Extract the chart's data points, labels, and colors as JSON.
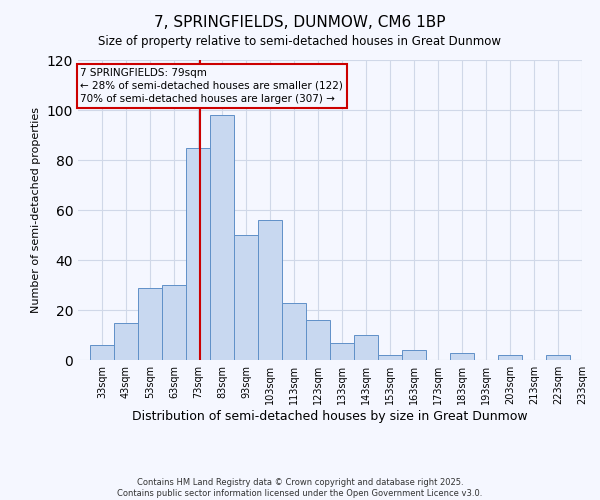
{
  "title": "7, SPRINGFIELDS, DUNMOW, CM6 1BP",
  "subtitle": "Size of property relative to semi-detached houses in Great Dunmow",
  "xlabel": "Distribution of semi-detached houses by size in Great Dunmow",
  "ylabel": "Number of semi-detached properties",
  "bins": [
    33,
    43,
    53,
    63,
    73,
    83,
    93,
    103,
    113,
    123,
    133,
    143,
    153,
    163,
    173,
    183,
    193,
    203,
    213,
    223,
    233
  ],
  "counts": [
    6,
    15,
    29,
    30,
    85,
    98,
    50,
    56,
    23,
    16,
    7,
    10,
    2,
    4,
    0,
    3,
    0,
    2,
    0,
    2
  ],
  "bar_color": "#c8d8f0",
  "bar_edge_color": "#6090c8",
  "vline_color": "#cc0000",
  "vline_x": 79,
  "annotation_line1": "7 SPRINGFIELDS: 79sqm",
  "annotation_line2": "← 28% of semi-detached houses are smaller (122)",
  "annotation_line3": "70% of semi-detached houses are larger (307) →",
  "annotation_box_edge_color": "#cc0000",
  "ylim": [
    0,
    120
  ],
  "yticks": [
    0,
    20,
    40,
    60,
    80,
    100,
    120
  ],
  "tick_labels": [
    "33sqm",
    "43sqm",
    "53sqm",
    "63sqm",
    "73sqm",
    "83sqm",
    "93sqm",
    "103sqm",
    "113sqm",
    "123sqm",
    "133sqm",
    "143sqm",
    "153sqm",
    "163sqm",
    "173sqm",
    "183sqm",
    "193sqm",
    "203sqm",
    "213sqm",
    "223sqm",
    "233sqm"
  ],
  "bg_color": "#f5f7ff",
  "grid_color": "#d0d8e8",
  "footer1": "Contains HM Land Registry data © Crown copyright and database right 2025.",
  "footer2": "Contains public sector information licensed under the Open Government Licence v3.0."
}
